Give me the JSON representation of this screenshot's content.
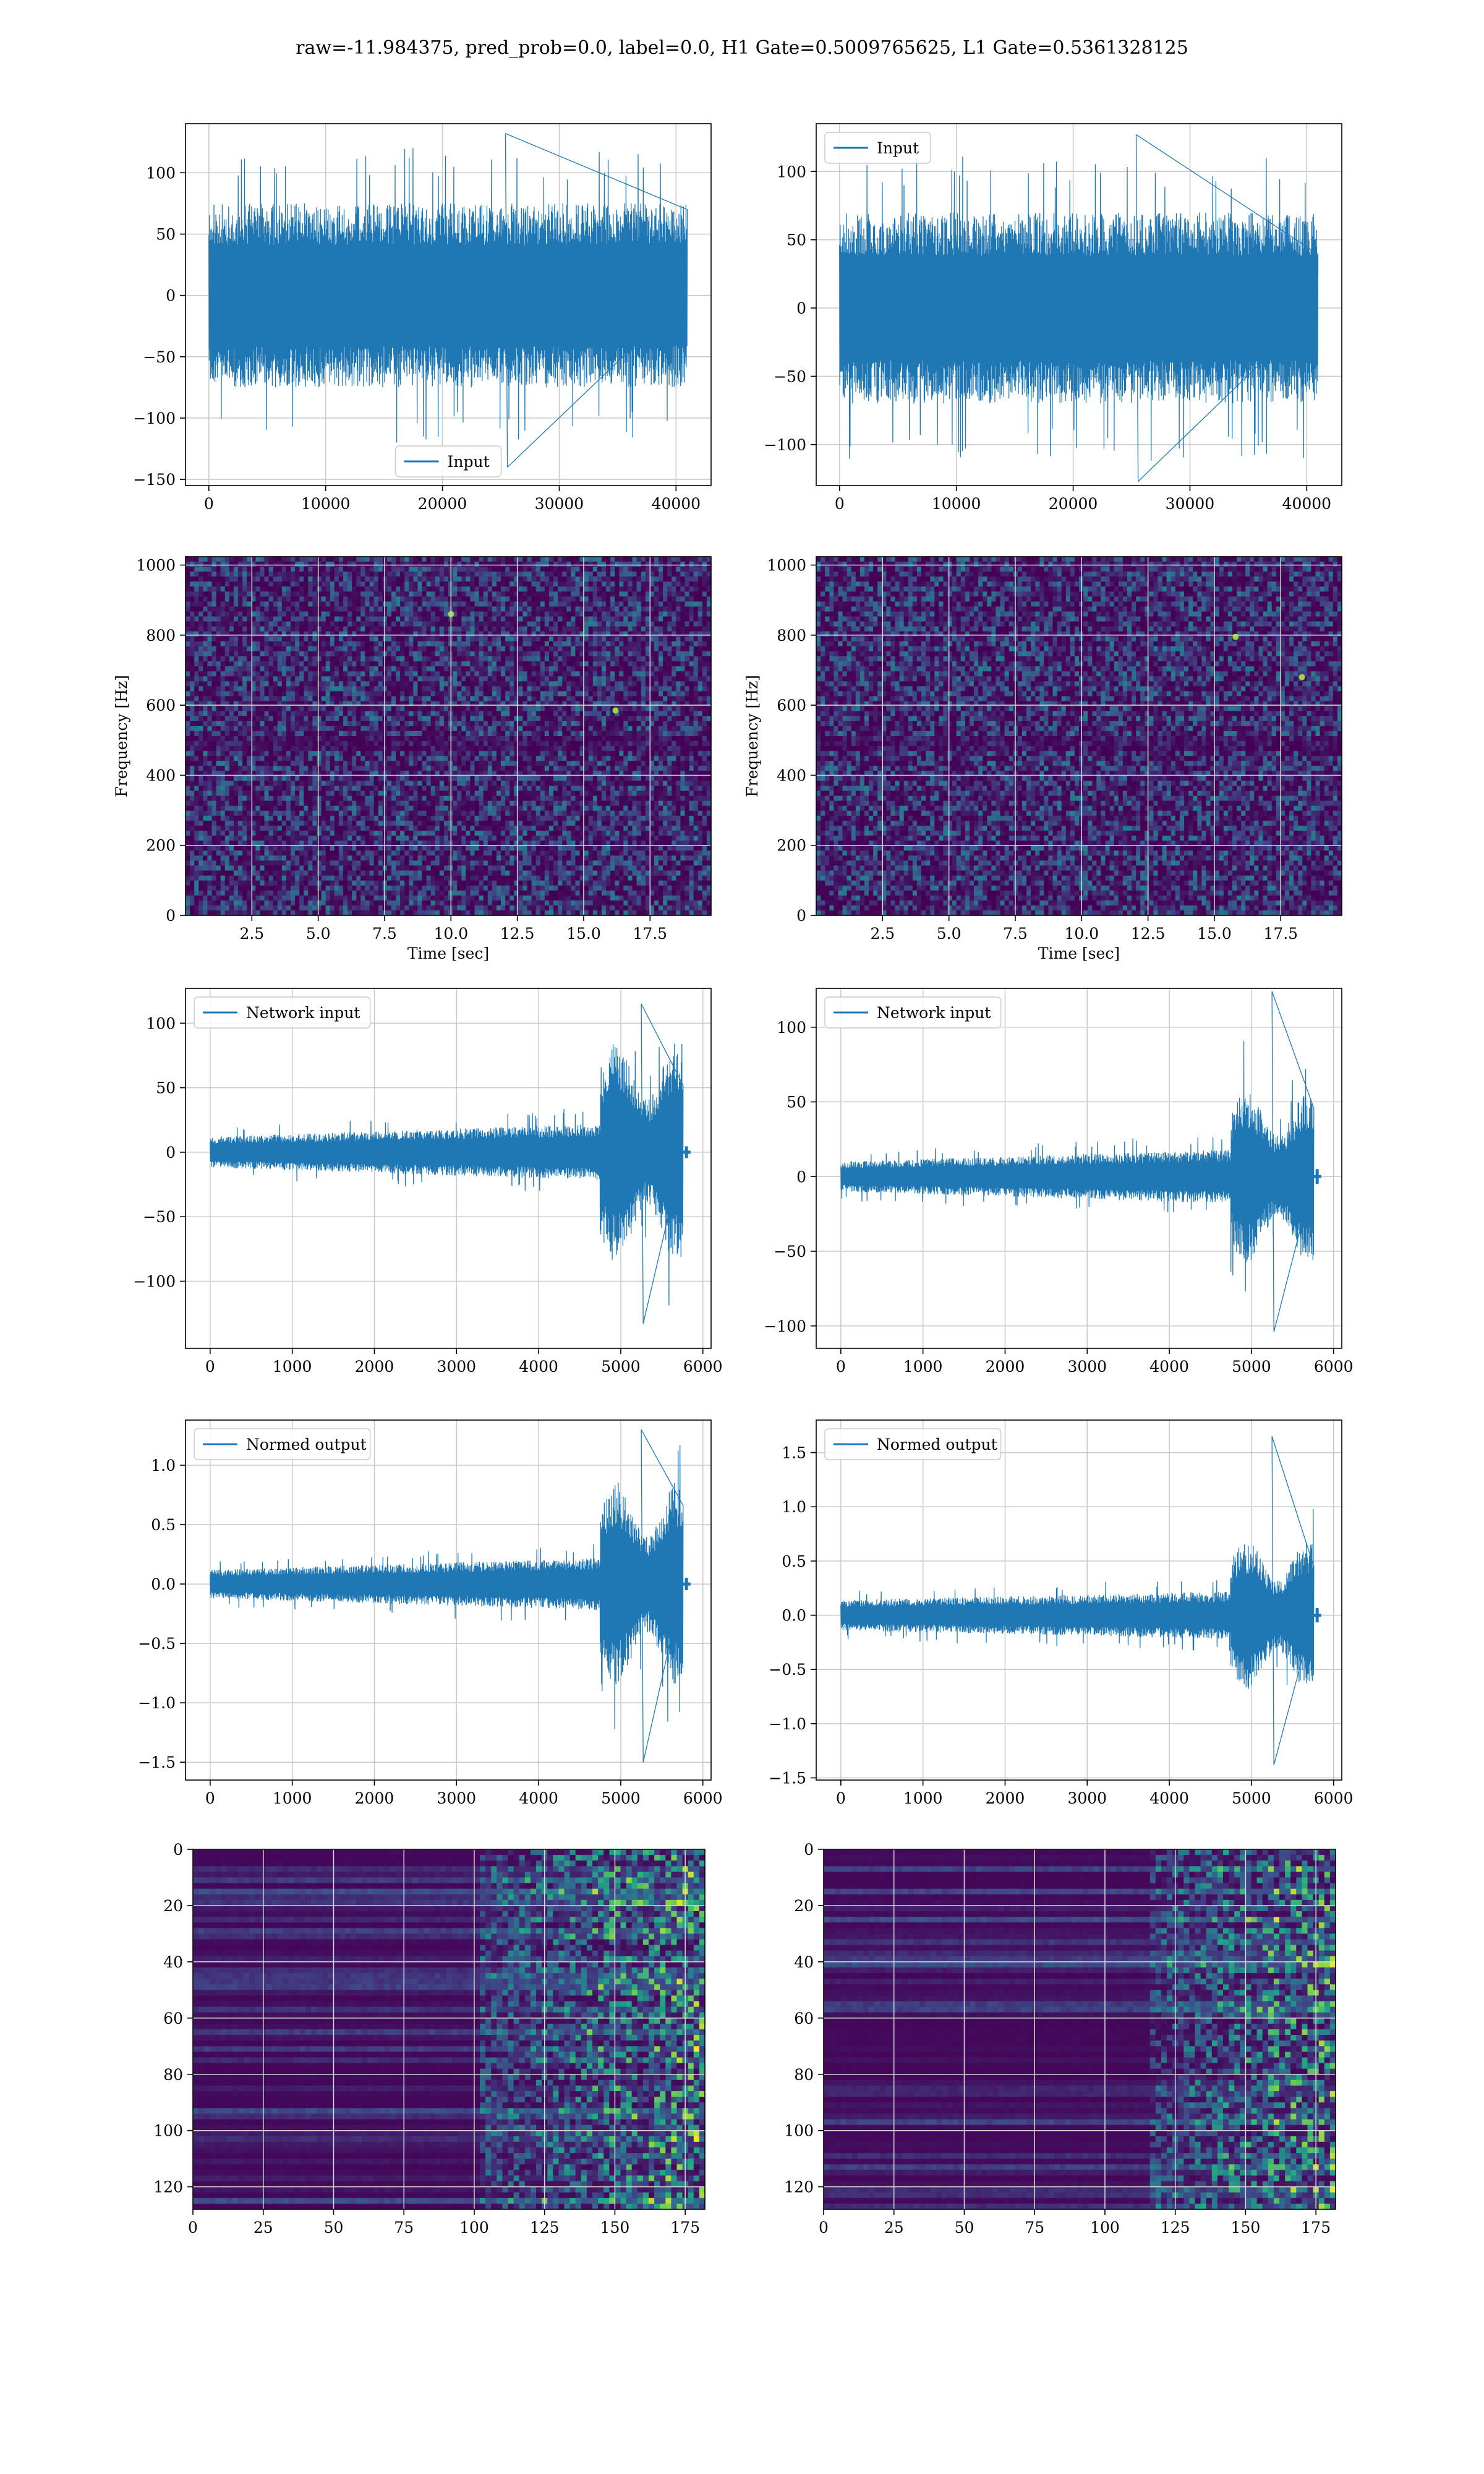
{
  "figure": {
    "title": "raw=-11.984375, pred_prob=0.0, label=0.0, H1 Gate=0.5009765625, L1 Gate=0.5361328125"
  },
  "colors": {
    "line": "#1f77b4",
    "grid": "#c9c9c9",
    "viridis_low": "#440154",
    "viridis_mid": "#21918c",
    "viridis_high": "#fde725"
  },
  "chart_data": [
    {
      "id": "input_h1",
      "type": "line",
      "series": [
        {
          "name": "Input"
        }
      ],
      "legend": "lower-center",
      "xlim": [
        -2000,
        43000
      ],
      "ylim": [
        -155,
        140
      ],
      "xticks": [
        0,
        10000,
        20000,
        30000,
        40000
      ],
      "xtick_labels": [
        "0",
        "10000",
        "20000",
        "30000",
        "40000"
      ],
      "yticks": [
        100,
        50,
        0,
        -50,
        -100,
        -150
      ],
      "ytick_labels": [
        "100",
        "50",
        "0",
        "−50",
        "−100",
        "−150"
      ],
      "signal": {
        "kind": "noise",
        "x_start": 0,
        "x_end": 40960,
        "baseline": 0,
        "band_amplitude": 75,
        "max": 132,
        "min": -140
      },
      "grid": true
    },
    {
      "id": "input_l1",
      "type": "line",
      "series": [
        {
          "name": "Input"
        }
      ],
      "legend": "top-left",
      "xlim": [
        -2000,
        43000
      ],
      "ylim": [
        -130,
        135
      ],
      "xticks": [
        0,
        10000,
        20000,
        30000,
        40000
      ],
      "xtick_labels": [
        "0",
        "10000",
        "20000",
        "30000",
        "40000"
      ],
      "yticks": [
        100,
        50,
        0,
        -50,
        -100
      ],
      "ytick_labels": [
        "100",
        "50",
        "0",
        "−50",
        "−100"
      ],
      "signal": {
        "kind": "noise",
        "x_start": 0,
        "x_end": 40960,
        "baseline": 0,
        "band_amplitude": 70,
        "max": 127,
        "min": -127
      },
      "grid": true
    },
    {
      "id": "spec_h1",
      "type": "heatmap",
      "xlabel": "Time [sec]",
      "ylabel": "Frequency [Hz]",
      "xlim": [
        0,
        19.8
      ],
      "ylim": [
        0,
        1024
      ],
      "xticks": [
        2.5,
        5.0,
        7.5,
        10.0,
        12.5,
        15.0,
        17.5
      ],
      "xtick_labels": [
        "2.5",
        "5.0",
        "7.5",
        "10.0",
        "12.5",
        "15.0",
        "17.5"
      ],
      "yticks": [
        0,
        200,
        400,
        600,
        800,
        1000
      ],
      "ytick_labels": [
        "0",
        "200",
        "400",
        "600",
        "800",
        "1000"
      ],
      "colormap": "viridis",
      "hot_spots": [
        {
          "x": 16.2,
          "y": 585
        },
        {
          "x": 10.0,
          "y": 860
        }
      ],
      "grid": true
    },
    {
      "id": "spec_l1",
      "type": "heatmap",
      "xlabel": "Time [sec]",
      "ylabel": "Frequency [Hz]",
      "xlim": [
        0,
        19.8
      ],
      "ylim": [
        0,
        1024
      ],
      "xticks": [
        2.5,
        5.0,
        7.5,
        10.0,
        12.5,
        15.0,
        17.5
      ],
      "xtick_labels": [
        "2.5",
        "5.0",
        "7.5",
        "10.0",
        "12.5",
        "15.0",
        "17.5"
      ],
      "yticks": [
        0,
        200,
        400,
        600,
        800,
        1000
      ],
      "ytick_labels": [
        "0",
        "200",
        "400",
        "600",
        "800",
        "1000"
      ],
      "colormap": "viridis",
      "hot_spots": [
        {
          "x": 15.8,
          "y": 795
        },
        {
          "x": 18.3,
          "y": 680
        }
      ],
      "grid": true
    },
    {
      "id": "netin_h1",
      "type": "line",
      "series": [
        {
          "name": "Network input"
        }
      ],
      "legend": "top-left",
      "xlim": [
        -300,
        6100
      ],
      "ylim": [
        -152,
        127
      ],
      "xticks": [
        0,
        1000,
        2000,
        3000,
        4000,
        5000,
        6000
      ],
      "xtick_labels": [
        "0",
        "1000",
        "2000",
        "3000",
        "4000",
        "5000",
        "6000"
      ],
      "yticks": [
        100,
        50,
        0,
        -50,
        -100
      ],
      "ytick_labels": [
        "100",
        "50",
        "0",
        "−50",
        "−100"
      ],
      "signal": {
        "kind": "ramp-burst",
        "x_start": 0,
        "x_end": 5760,
        "tail_end": 5850,
        "start_amp": 12,
        "ramp_end_amp": 22,
        "burst_start": 4750,
        "burst_amp": 75,
        "max": 115,
        "min": -133
      },
      "grid": true
    },
    {
      "id": "netin_l1",
      "type": "line",
      "series": [
        {
          "name": "Network input"
        }
      ],
      "legend": "top-left",
      "xlim": [
        -300,
        6100
      ],
      "ylim": [
        -115,
        126
      ],
      "xticks": [
        0,
        1000,
        2000,
        3000,
        4000,
        5000,
        6000
      ],
      "xtick_labels": [
        "0",
        "1000",
        "2000",
        "3000",
        "4000",
        "5000",
        "6000"
      ],
      "yticks": [
        100,
        50,
        0,
        -50,
        -100
      ],
      "ytick_labels": [
        "100",
        "50",
        "0",
        "−50",
        "−100"
      ],
      "signal": {
        "kind": "ramp-burst",
        "x_start": 0,
        "x_end": 5760,
        "tail_end": 5850,
        "start_amp": 10,
        "ramp_end_amp": 18,
        "burst_start": 4750,
        "burst_amp": 50,
        "max": 124,
        "min": -104
      },
      "grid": true
    },
    {
      "id": "norm_h1",
      "type": "line",
      "series": [
        {
          "name": "Normed output"
        }
      ],
      "legend": "top-left",
      "xlim": [
        -300,
        6100
      ],
      "ylim": [
        -1.65,
        1.38
      ],
      "xticks": [
        0,
        1000,
        2000,
        3000,
        4000,
        5000,
        6000
      ],
      "xtick_labels": [
        "0",
        "1000",
        "2000",
        "3000",
        "4000",
        "5000",
        "6000"
      ],
      "yticks": [
        1.0,
        0.5,
        0.0,
        -0.5,
        -1.0,
        -1.5
      ],
      "ytick_labels": [
        "1.0",
        "0.5",
        "0.0",
        "−0.5",
        "−1.0",
        "−1.5"
      ],
      "signal": {
        "kind": "ramp-burst",
        "x_start": 0,
        "x_end": 5760,
        "tail_end": 5850,
        "start_amp": 0.12,
        "ramp_end_amp": 0.22,
        "burst_start": 4750,
        "burst_amp": 0.75,
        "max": 1.3,
        "min": -1.5
      },
      "grid": true
    },
    {
      "id": "norm_l1",
      "type": "line",
      "series": [
        {
          "name": "Normed output"
        }
      ],
      "legend": "top-left",
      "xlim": [
        -300,
        6100
      ],
      "ylim": [
        -1.52,
        1.8
      ],
      "xticks": [
        0,
        1000,
        2000,
        3000,
        4000,
        5000,
        6000
      ],
      "xtick_labels": [
        "0",
        "1000",
        "2000",
        "3000",
        "4000",
        "5000",
        "6000"
      ],
      "yticks": [
        1.5,
        1.0,
        0.5,
        0.0,
        -0.5,
        -1.0,
        -1.5
      ],
      "ytick_labels": [
        "1.5",
        "1.0",
        "0.5",
        "0.0",
        "−0.5",
        "−1.0",
        "−1.5"
      ],
      "signal": {
        "kind": "ramp-burst",
        "x_start": 0,
        "x_end": 5760,
        "tail_end": 5850,
        "start_amp": 0.14,
        "ramp_end_amp": 0.22,
        "burst_start": 4750,
        "burst_amp": 0.6,
        "max": 1.65,
        "min": -1.38
      },
      "grid": true
    },
    {
      "id": "act_h1",
      "type": "heatmap",
      "xlim": [
        0,
        182
      ],
      "ylim": [
        128,
        0
      ],
      "xticks": [
        0,
        25,
        50,
        75,
        100,
        125,
        150,
        175
      ],
      "xtick_labels": [
        "0",
        "25",
        "50",
        "75",
        "100",
        "125",
        "150",
        "175"
      ],
      "yticks": [
        0,
        20,
        40,
        60,
        80,
        100,
        120
      ],
      "ytick_labels": [
        "0",
        "20",
        "40",
        "60",
        "80",
        "100",
        "120"
      ],
      "colormap": "viridis",
      "activity_onset": 100,
      "grid": true
    },
    {
      "id": "act_l1",
      "type": "heatmap",
      "xlim": [
        0,
        182
      ],
      "ylim": [
        128,
        0
      ],
      "xticks": [
        0,
        25,
        50,
        75,
        100,
        125,
        150,
        175
      ],
      "xtick_labels": [
        "0",
        "25",
        "50",
        "75",
        "100",
        "125",
        "150",
        "175"
      ],
      "yticks": [
        0,
        20,
        40,
        60,
        80,
        100,
        120
      ],
      "ytick_labels": [
        "0",
        "20",
        "40",
        "60",
        "80",
        "100",
        "120"
      ],
      "colormap": "viridis",
      "activity_onset": 115,
      "grid": true
    }
  ]
}
